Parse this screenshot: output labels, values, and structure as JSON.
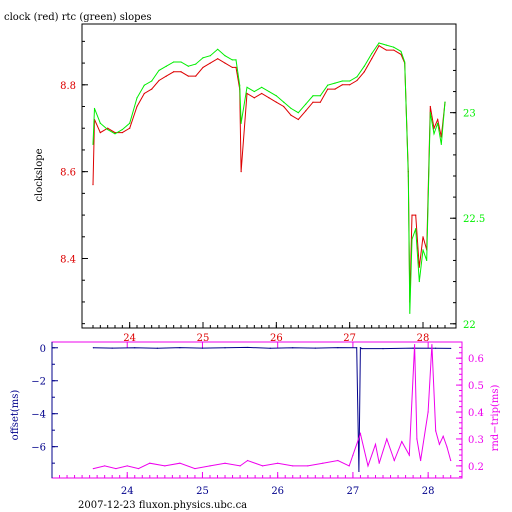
{
  "title": "clock (red) rtc (green) slopes",
  "footer": "2007-12-23 fluxon.physics.ubc.ca",
  "colors": {
    "clock": "#dd0000",
    "rtc": "#00ee00",
    "offset": "#00008b",
    "rndtrip": "#ee00ee",
    "axis": "#000000"
  },
  "chart_data": [
    {
      "type": "line",
      "title": "clock (red) rtc (green) slopes",
      "ylabel": "clockslope",
      "y2label": "",
      "x_ticks": [
        24,
        25,
        26,
        27,
        28
      ],
      "xlim": [
        23.35,
        28.45
      ],
      "ylim_left": [
        8.24,
        8.94
      ],
      "ylim_right": [
        21.98,
        23.42
      ],
      "y_ticks_left": [
        "8.4",
        "8.6",
        "8.8"
      ],
      "y_ticks_right": [
        "22",
        "22.5",
        "23"
      ],
      "series": [
        {
          "name": "clock",
          "axis": "left",
          "x": [
            23.5,
            23.52,
            23.6,
            23.7,
            23.8,
            23.9,
            24.0,
            24.1,
            24.2,
            24.3,
            24.4,
            24.5,
            24.6,
            24.7,
            24.8,
            24.9,
            25.0,
            25.1,
            25.2,
            25.3,
            25.4,
            25.45,
            25.5,
            25.52,
            25.6,
            25.7,
            25.8,
            25.9,
            26.0,
            26.1,
            26.2,
            26.3,
            26.4,
            26.5,
            26.6,
            26.7,
            26.8,
            26.9,
            27.0,
            27.1,
            27.2,
            27.3,
            27.4,
            27.5,
            27.6,
            27.7,
            27.75,
            27.8,
            27.82,
            27.85,
            27.9,
            27.95,
            28.0,
            28.05,
            28.1,
            28.15,
            28.2,
            28.25,
            28.3
          ],
          "y": [
            8.57,
            8.72,
            8.69,
            8.7,
            8.69,
            8.69,
            8.7,
            8.75,
            8.78,
            8.79,
            8.81,
            8.82,
            8.83,
            8.83,
            8.82,
            8.82,
            8.84,
            8.85,
            8.86,
            8.85,
            8.84,
            8.84,
            8.79,
            8.6,
            8.78,
            8.77,
            8.78,
            8.77,
            8.76,
            8.75,
            8.73,
            8.72,
            8.74,
            8.76,
            8.76,
            8.79,
            8.79,
            8.8,
            8.8,
            8.81,
            8.83,
            8.86,
            8.89,
            8.88,
            8.88,
            8.87,
            8.85,
            8.6,
            8.3,
            8.5,
            8.5,
            8.38,
            8.45,
            8.42,
            8.75,
            8.7,
            8.72,
            8.68,
            8.76
          ]
        },
        {
          "name": "rtc",
          "axis": "right",
          "x": [
            23.5,
            23.52,
            23.6,
            23.7,
            23.8,
            23.9,
            24.0,
            24.1,
            24.2,
            24.3,
            24.4,
            24.5,
            24.6,
            24.7,
            24.8,
            24.9,
            25.0,
            25.1,
            25.2,
            25.3,
            25.4,
            25.45,
            25.5,
            25.52,
            25.6,
            25.7,
            25.8,
            25.9,
            26.0,
            26.1,
            26.2,
            26.3,
            26.4,
            26.5,
            26.6,
            26.7,
            26.8,
            26.9,
            27.0,
            27.1,
            27.2,
            27.3,
            27.4,
            27.5,
            27.6,
            27.7,
            27.75,
            27.8,
            27.82,
            27.85,
            27.9,
            27.95,
            28.0,
            28.05,
            28.1,
            28.15,
            28.2,
            28.25,
            28.3
          ],
          "y": [
            22.85,
            23.02,
            22.95,
            22.92,
            22.9,
            22.92,
            22.95,
            23.07,
            23.13,
            23.15,
            23.2,
            23.22,
            23.24,
            23.24,
            23.22,
            23.23,
            23.26,
            23.27,
            23.3,
            23.27,
            23.25,
            23.25,
            23.13,
            22.95,
            23.12,
            23.1,
            23.12,
            23.1,
            23.08,
            23.05,
            23.02,
            23.0,
            23.04,
            23.08,
            23.08,
            23.13,
            23.14,
            23.15,
            23.15,
            23.17,
            23.22,
            23.28,
            23.33,
            23.32,
            23.31,
            23.29,
            23.24,
            22.7,
            22.05,
            22.4,
            22.45,
            22.2,
            22.35,
            22.3,
            23.0,
            22.9,
            22.95,
            22.85,
            23.05
          ]
        }
      ]
    },
    {
      "type": "line",
      "ylabel": "offset(ms)",
      "y2label": "rnd−trip(ms)",
      "x_ticks": [
        24,
        25,
        26,
        27,
        28
      ],
      "xlim": [
        23.0,
        28.45
      ],
      "ylim_left": [
        -7.9,
        0.35
      ],
      "ylim_right": [
        0.155,
        0.66
      ],
      "y_ticks_left": [
        "0",
        "−2",
        "−4",
        "−6"
      ],
      "y_ticks_right": [
        "0.6",
        "0.5",
        "0.4",
        "0.3",
        "0.2"
      ],
      "series": [
        {
          "name": "offset",
          "axis": "left",
          "x": [
            23.55,
            23.8,
            24.1,
            24.4,
            24.7,
            25.0,
            25.3,
            25.6,
            25.9,
            26.2,
            26.5,
            26.8,
            27.05,
            27.08,
            27.1,
            27.12,
            27.4,
            27.8,
            28.1,
            28.3
          ],
          "y": [
            0.0,
            -0.02,
            0.0,
            -0.03,
            0.01,
            -0.02,
            0.0,
            0.02,
            -0.03,
            0.0,
            -0.02,
            0.01,
            0.0,
            -7.5,
            0.0,
            -0.05,
            -0.05,
            -0.02,
            -0.03,
            -0.04
          ]
        },
        {
          "name": "rndtrip",
          "axis": "right",
          "x": [
            23.55,
            23.7,
            23.85,
            24.0,
            24.15,
            24.3,
            24.5,
            24.7,
            24.9,
            25.1,
            25.3,
            25.5,
            25.6,
            25.8,
            26.0,
            26.2,
            26.4,
            26.6,
            26.8,
            26.95,
            27.0,
            27.1,
            27.2,
            27.3,
            27.35,
            27.45,
            27.55,
            27.65,
            27.75,
            27.82,
            27.85,
            27.9,
            28.0,
            28.05,
            28.1,
            28.15,
            28.2,
            28.25,
            28.3
          ],
          "y": [
            0.19,
            0.2,
            0.19,
            0.2,
            0.19,
            0.21,
            0.2,
            0.21,
            0.19,
            0.2,
            0.21,
            0.2,
            0.22,
            0.2,
            0.21,
            0.2,
            0.2,
            0.21,
            0.22,
            0.2,
            0.24,
            0.32,
            0.2,
            0.28,
            0.21,
            0.3,
            0.22,
            0.29,
            0.24,
            0.65,
            0.3,
            0.22,
            0.4,
            0.65,
            0.33,
            0.28,
            0.31,
            0.27,
            0.22
          ]
        }
      ]
    }
  ]
}
